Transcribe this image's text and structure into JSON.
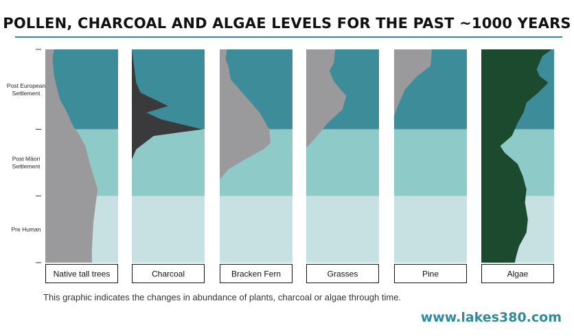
{
  "title": "POLLEN, CHARCOAL AND ALGAE LEVELS FOR THE PAST ~1000 YEARS",
  "caption": "This graphic indicates the changes in abundance of plants, charcoal or algae through time.",
  "website": "www.lakes380.com",
  "colors": {
    "accent": "#2f8a99",
    "band_post_european": "#3d8c9a",
    "band_post_maori": "#8ecbc8",
    "band_pre_human": "#c7e0e2",
    "pollen": "#9a999b",
    "charcoal": "#3a3a3c",
    "algae": "#1b4a2f"
  },
  "chart_data": {
    "type": "area",
    "y_axis": "time (top = present, bottom = oldest)",
    "periods": [
      {
        "name": "Post European\nSettlement",
        "from": 0,
        "to": 1.2
      },
      {
        "name": "Post Māori\nSettlement",
        "from": 1.2,
        "to": 2.2
      },
      {
        "name": "Pre Human",
        "from": 2.2,
        "to": 3.2
      }
    ],
    "panels": [
      {
        "label": "Native tall trees",
        "color_key": "pollen",
        "profile": [
          [
            0,
            0.12
          ],
          [
            0.14,
            0.1
          ],
          [
            0.4,
            0.12
          ],
          [
            0.75,
            0.2
          ],
          [
            0.95,
            0.3
          ],
          [
            1.15,
            0.38
          ],
          [
            1.25,
            0.45
          ],
          [
            1.45,
            0.55
          ],
          [
            1.75,
            0.62
          ],
          [
            2.1,
            0.72
          ],
          [
            2.25,
            0.7
          ],
          [
            2.6,
            0.66
          ],
          [
            3.0,
            0.64
          ],
          [
            3.2,
            0.64
          ]
        ]
      },
      {
        "label": "Charcoal",
        "color_key": "charcoal",
        "profile": [
          [
            0,
            0.0
          ],
          [
            0.25,
            0.03
          ],
          [
            0.5,
            0.06
          ],
          [
            0.65,
            0.12
          ],
          [
            0.85,
            0.5
          ],
          [
            0.95,
            0.2
          ],
          [
            1.05,
            0.4
          ],
          [
            1.2,
            0.97
          ],
          [
            1.3,
            0.3
          ],
          [
            1.5,
            0.06
          ],
          [
            1.65,
            0.0
          ],
          [
            3.2,
            0.0
          ]
        ]
      },
      {
        "label": "Bracken Fern",
        "color_key": "pollen",
        "profile": [
          [
            0,
            0.1
          ],
          [
            0.15,
            0.08
          ],
          [
            0.25,
            0.12
          ],
          [
            0.45,
            0.15
          ],
          [
            0.7,
            0.35
          ],
          [
            0.95,
            0.55
          ],
          [
            1.2,
            0.68
          ],
          [
            1.4,
            0.7
          ],
          [
            1.5,
            0.6
          ],
          [
            1.65,
            0.35
          ],
          [
            1.8,
            0.12
          ],
          [
            1.95,
            0.0
          ],
          [
            3.2,
            0.0
          ]
        ]
      },
      {
        "label": "Grasses",
        "color_key": "pollen",
        "profile": [
          [
            0,
            0.4
          ],
          [
            0.2,
            0.38
          ],
          [
            0.32,
            0.32
          ],
          [
            0.48,
            0.38
          ],
          [
            0.7,
            0.55
          ],
          [
            0.9,
            0.5
          ],
          [
            1.1,
            0.3
          ],
          [
            1.3,
            0.15
          ],
          [
            1.48,
            0.0
          ],
          [
            3.2,
            0.0
          ]
        ]
      },
      {
        "label": "Pine",
        "color_key": "pollen",
        "profile": [
          [
            0,
            0.52
          ],
          [
            0.25,
            0.5
          ],
          [
            0.4,
            0.32
          ],
          [
            0.6,
            0.15
          ],
          [
            0.85,
            0.05
          ],
          [
            1.0,
            0.0
          ],
          [
            3.2,
            0.0
          ]
        ]
      },
      {
        "label": "Algae",
        "color_key": "algae",
        "profile": [
          [
            0,
            0.97
          ],
          [
            0.1,
            0.84
          ],
          [
            0.3,
            0.76
          ],
          [
            0.4,
            0.8
          ],
          [
            0.5,
            0.92
          ],
          [
            0.65,
            0.78
          ],
          [
            0.8,
            0.62
          ],
          [
            0.95,
            0.58
          ],
          [
            1.1,
            0.5
          ],
          [
            1.3,
            0.42
          ],
          [
            1.45,
            0.26
          ],
          [
            1.55,
            0.32
          ],
          [
            1.72,
            0.5
          ],
          [
            1.9,
            0.57
          ],
          [
            2.1,
            0.62
          ],
          [
            2.3,
            0.6
          ],
          [
            2.55,
            0.64
          ],
          [
            2.75,
            0.62
          ],
          [
            2.95,
            0.52
          ],
          [
            3.1,
            0.48
          ],
          [
            3.2,
            0.46
          ]
        ]
      }
    ]
  }
}
